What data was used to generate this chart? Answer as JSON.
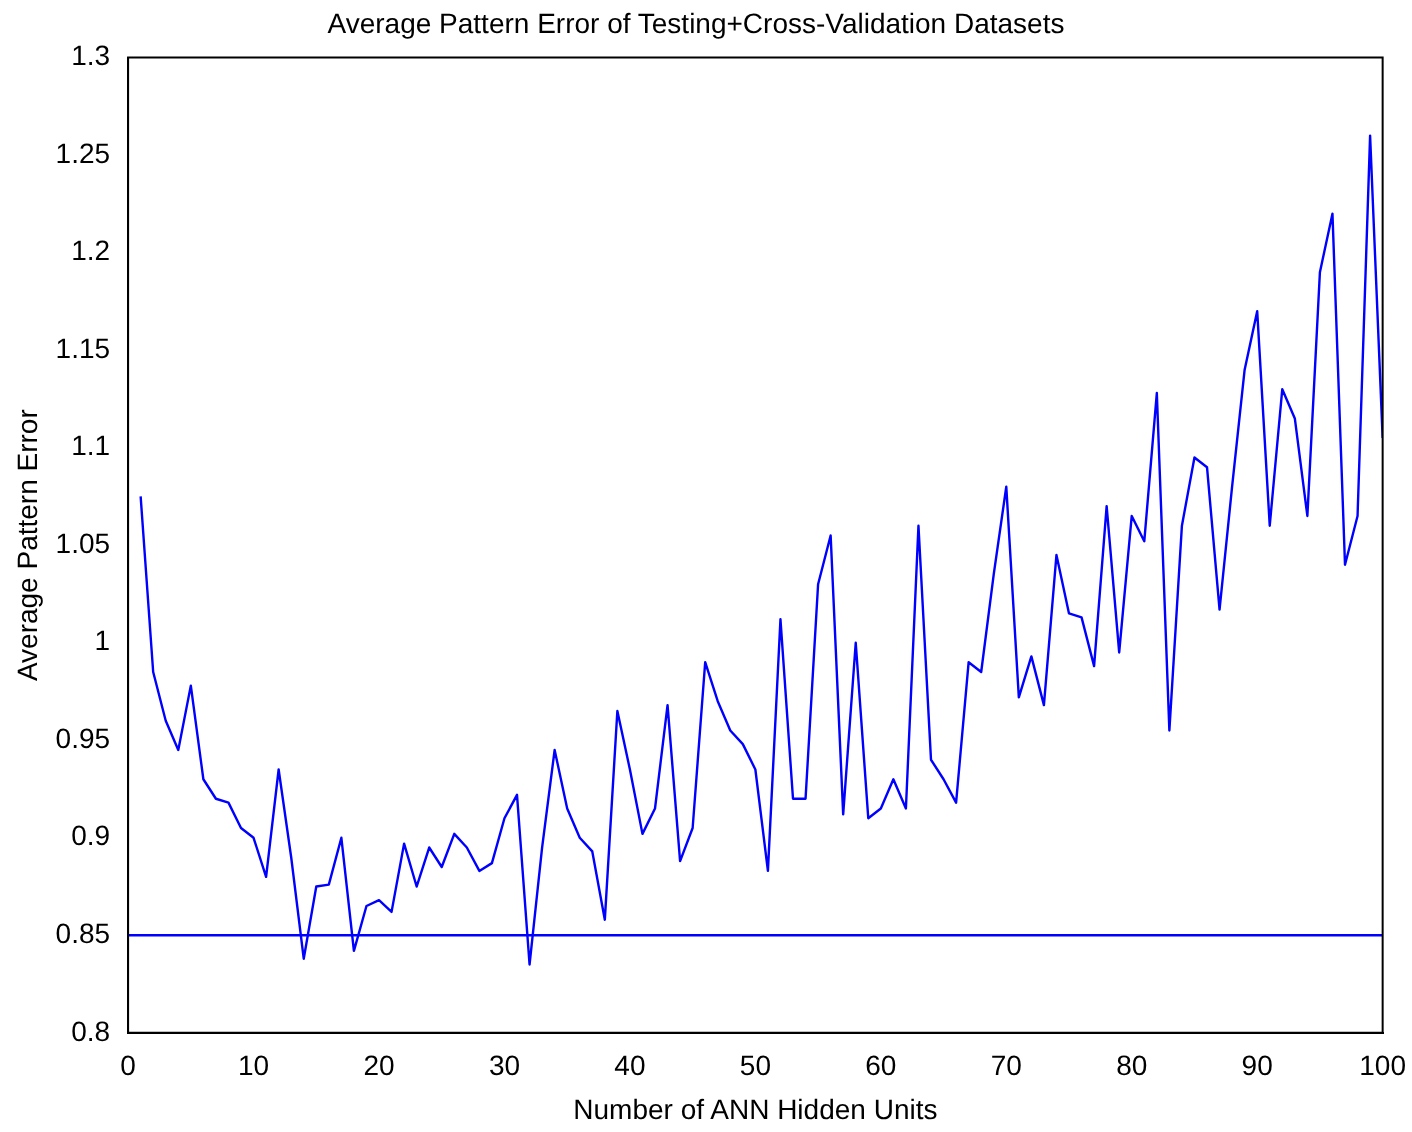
{
  "chart_data": {
    "type": "line",
    "title": "Average Pattern Error of Testing+Cross-Validation Datasets",
    "xlabel": "Number of ANN Hidden Units",
    "ylabel": "Average Pattern Error",
    "x": [
      1,
      2,
      3,
      4,
      5,
      6,
      7,
      8,
      9,
      10,
      11,
      12,
      13,
      14,
      15,
      16,
      17,
      18,
      19,
      20,
      21,
      22,
      23,
      24,
      25,
      26,
      27,
      28,
      29,
      30,
      31,
      32,
      33,
      34,
      35,
      36,
      37,
      38,
      39,
      40,
      41,
      42,
      43,
      44,
      45,
      46,
      47,
      48,
      49,
      50,
      51,
      52,
      53,
      54,
      55,
      56,
      57,
      58,
      59,
      60,
      61,
      62,
      63,
      64,
      65,
      66,
      67,
      68,
      69,
      70,
      71,
      72,
      73,
      74,
      75,
      76,
      77,
      78,
      79,
      80,
      81,
      82,
      83,
      84,
      85,
      86,
      87,
      88,
      89,
      90,
      91,
      92,
      93,
      94,
      95,
      96,
      97,
      98,
      99,
      100
    ],
    "series": [
      {
        "color": "#0000ff",
        "values": [
          1.075,
          0.985,
          0.96,
          0.945,
          0.978,
          0.93,
          0.92,
          0.918,
          0.905,
          0.9,
          0.88,
          0.935,
          0.89,
          0.838,
          0.875,
          0.876,
          0.9,
          0.842,
          0.865,
          0.868,
          0.862,
          0.897,
          0.875,
          0.895,
          0.885,
          0.902,
          0.895,
          0.883,
          0.887,
          0.91,
          0.922,
          0.835,
          0.895,
          0.945,
          0.915,
          0.9,
          0.893,
          0.858,
          0.965,
          0.935,
          0.902,
          0.915,
          0.968,
          0.888,
          0.905,
          0.99,
          0.97,
          0.955,
          0.948,
          0.935,
          0.883,
          1.012,
          0.92,
          0.92,
          1.03,
          1.055,
          0.912,
          1.0,
          0.91,
          0.915,
          0.93,
          0.915,
          1.06,
          0.94,
          0.93,
          0.918,
          0.99,
          0.985,
          1.035,
          1.08,
          0.972,
          0.993,
          0.968,
          1.045,
          1.015,
          1.013,
          0.988,
          1.07,
          0.995,
          1.065,
          1.052,
          1.128,
          0.955,
          1.06,
          1.095,
          1.09,
          1.017,
          1.08,
          1.14,
          1.17,
          1.06,
          1.13,
          1.115,
          1.065,
          1.19,
          1.22,
          1.04,
          1.065,
          1.26,
          1.105
        ]
      }
    ],
    "xlim": [
      0,
      100
    ],
    "xticks": [
      0,
      10,
      20,
      30,
      40,
      50,
      60,
      70,
      80,
      90,
      100
    ],
    "ylim": [
      0.8,
      1.3
    ],
    "yticks": [
      0.8,
      0.85,
      0.9,
      0.95,
      1,
      1.05,
      1.1,
      1.15,
      1.2,
      1.25,
      1.3
    ],
    "ref_lines": [
      {
        "axis": "y",
        "value": 0.85,
        "color": "#0000ff"
      }
    ],
    "grid": false,
    "legend": false,
    "marker": "none",
    "line_style": "solid"
  }
}
